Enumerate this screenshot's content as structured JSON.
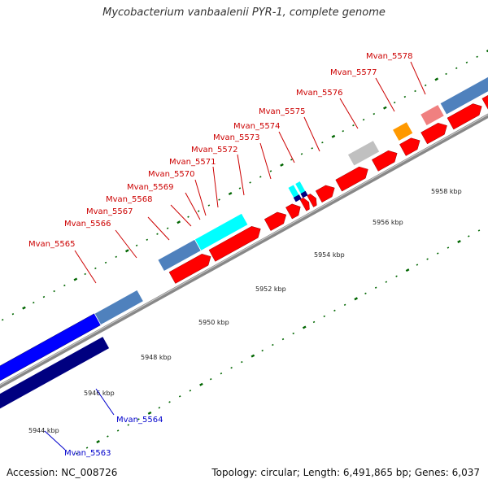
{
  "title": "Mycobacterium vanbaalenii PYR-1, complete genome",
  "footer": {
    "accession": "Accession: NC_008726",
    "summary": "Topology: circular; Length: 6,491,865 bp; Genes: 6,037"
  },
  "ticks": [
    "5944 kbp",
    "5946 kbp",
    "5948 kbp",
    "5950 kbp",
    "5952 kbp",
    "5954 kbp",
    "5956 kbp",
    "5958 kbp"
  ],
  "colors": {
    "forward_cds": "#ff0000",
    "steelblue": "#4f81bd",
    "cyan": "#00ffff",
    "gray": "#c0c0c0",
    "orange": "#ff9900",
    "pink": "#f08080",
    "blue": "#0000ff",
    "navy": "#000080",
    "label_forward": "#cc0000",
    "label_reverse": "#0000cc",
    "backbone": "#888888",
    "ticks": "#006600"
  },
  "genes": [
    {
      "label": "Mvan_5563",
      "strand": "reverse"
    },
    {
      "label": "Mvan_5564",
      "strand": "reverse"
    },
    {
      "label": "Mvan_5565",
      "strand": "forward"
    },
    {
      "label": "Mvan_5566",
      "strand": "forward"
    },
    {
      "label": "Mvan_5567",
      "strand": "forward"
    },
    {
      "label": "Mvan_5568",
      "strand": "forward"
    },
    {
      "label": "Mvan_5569",
      "strand": "forward"
    },
    {
      "label": "Mvan_5570",
      "strand": "forward"
    },
    {
      "label": "Mvan_5571",
      "strand": "forward"
    },
    {
      "label": "Mvan_5572",
      "strand": "forward"
    },
    {
      "label": "Mvan_5573",
      "strand": "forward"
    },
    {
      "label": "Mvan_5574",
      "strand": "forward"
    },
    {
      "label": "Mvan_5575",
      "strand": "forward"
    },
    {
      "label": "Mvan_5576",
      "strand": "forward"
    },
    {
      "label": "Mvan_5577",
      "strand": "forward"
    },
    {
      "label": "Mvan_5578",
      "strand": "forward"
    }
  ]
}
